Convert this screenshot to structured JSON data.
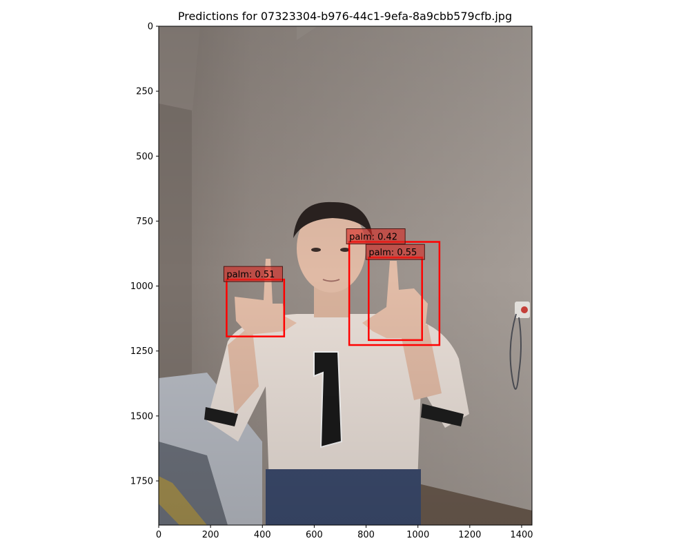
{
  "chart_data": {
    "type": "image_detections",
    "title": "Predictions for 07323304-b976-44c1-9efa-8a9cbb579cfb.jpg",
    "xlim": [
      0,
      1440
    ],
    "ylim_inverted": [
      0,
      1920
    ],
    "x_ticks": [
      0,
      200,
      400,
      600,
      800,
      1000,
      1200,
      1400
    ],
    "y_ticks": [
      0,
      250,
      500,
      750,
      1000,
      1250,
      1500,
      1750
    ],
    "box_color": "#ff0000",
    "detections": [
      {
        "label": "palm: 0.51",
        "class": "palm",
        "score": 0.51,
        "x0": 262,
        "y0": 975,
        "x1": 484,
        "y1": 1194
      },
      {
        "label": "palm: 0.42",
        "class": "palm",
        "score": 0.42,
        "x0": 735,
        "y0": 830,
        "x1": 1083,
        "y1": 1227
      },
      {
        "label": "palm: 0.55",
        "class": "palm",
        "score": 0.55,
        "x0": 810,
        "y0": 890,
        "x1": 1016,
        "y1": 1208
      }
    ]
  }
}
